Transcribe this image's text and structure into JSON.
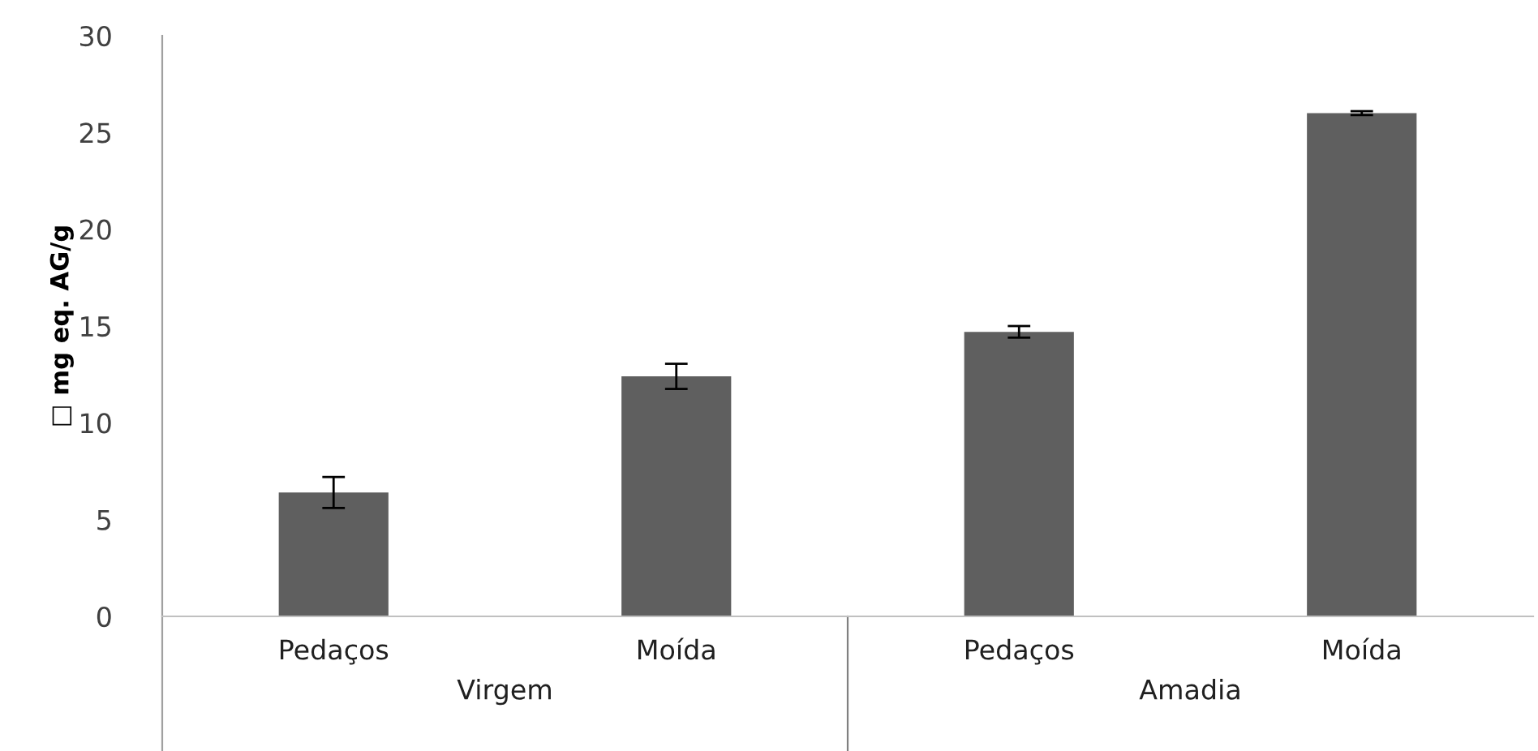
{
  "chart_data": {
    "type": "bar",
    "ylabel": "□ mg eq. AG/g",
    "categories": [
      "Pedaços",
      "Moída",
      "Pedaços",
      "Moída"
    ],
    "values": [
      6.4,
      12.4,
      14.7,
      26.0
    ],
    "errors": [
      0.8,
      0.65,
      0.3,
      0.1
    ],
    "color": "#5f5f5f",
    "ylim": [
      0,
      30
    ],
    "yticks": [
      0,
      5,
      10,
      15,
      20,
      25,
      30
    ],
    "grid": false,
    "annotations": [
      "Virgem",
      "Amadia"
    ]
  }
}
